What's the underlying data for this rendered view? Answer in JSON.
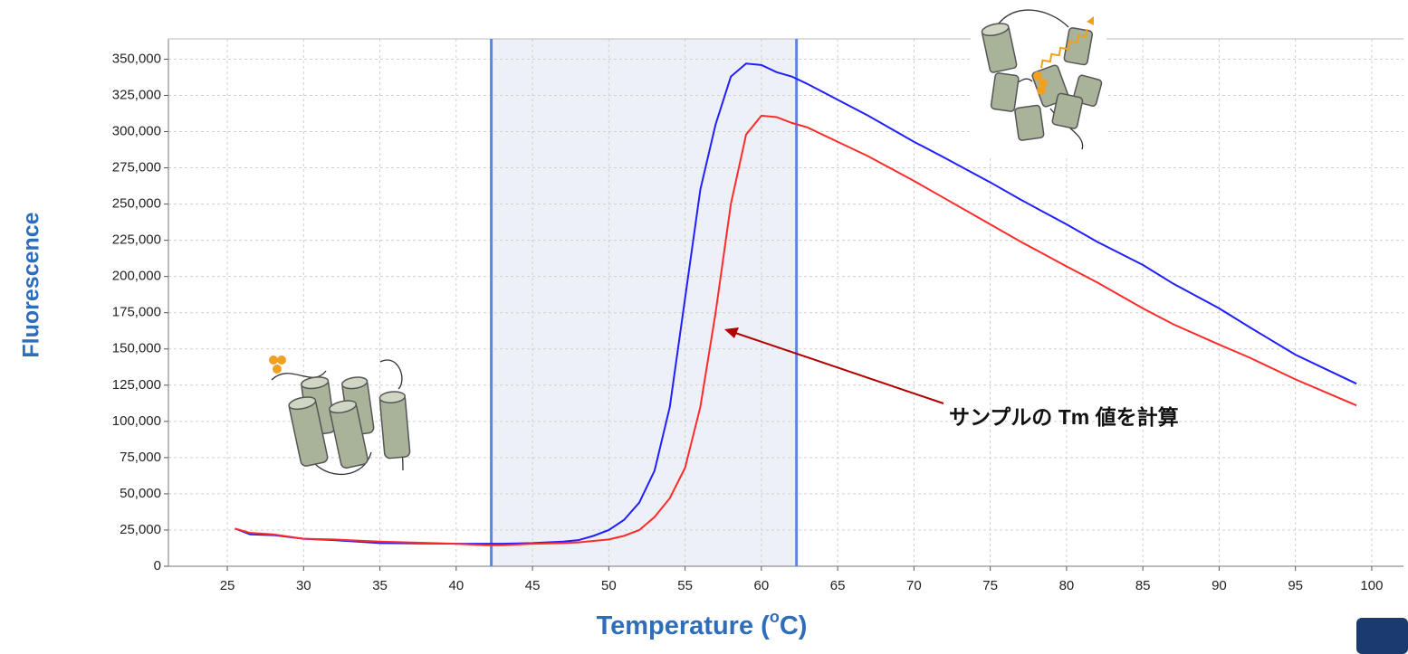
{
  "chart_data": {
    "type": "line",
    "y_label": "Fluorescence",
    "x_label": [
      "Temperature (",
      "o",
      "C)"
    ],
    "annotation": "サンプルの Tm 値を計算",
    "x": [
      25.5,
      26.5,
      28,
      30,
      32,
      35,
      40,
      42,
      43,
      45,
      47,
      48,
      49,
      50,
      51,
      52,
      53,
      54,
      55,
      56,
      57,
      58,
      59,
      60,
      61,
      62,
      63,
      65,
      67,
      70,
      72,
      75,
      77,
      80,
      82,
      85,
      87,
      90,
      92,
      95,
      97,
      99
    ],
    "series": [
      {
        "color": "#1f1fff",
        "values": [
          26000,
          22000,
          21500,
          19000,
          18000,
          16000,
          15500,
          15500,
          15500,
          16000,
          17000,
          18000,
          21000,
          25000,
          32000,
          44000,
          66000,
          110000,
          185000,
          260000,
          305000,
          338000,
          347000,
          346000,
          341000,
          338000,
          333000,
          322000,
          311000,
          293000,
          282000,
          265000,
          253000,
          236000,
          224000,
          208000,
          195000,
          178000,
          165000,
          146000,
          136000,
          126000
        ]
      },
      {
        "color": "#ff2a2a",
        "values": [
          26000,
          23000,
          22000,
          19000,
          18500,
          17000,
          15500,
          14500,
          14500,
          15500,
          16000,
          16500,
          17500,
          18500,
          21000,
          25000,
          34000,
          47000,
          68000,
          110000,
          175000,
          250000,
          298000,
          311000,
          310000,
          306000,
          303000,
          293000,
          283000,
          266000,
          254000,
          236000,
          224000,
          207000,
          196000,
          178000,
          167000,
          153000,
          144000,
          129000,
          120000,
          111000
        ]
      }
    ],
    "shaded_region": [
      42.3,
      62.3
    ],
    "shaded_color": "#eef0f8",
    "region_line_color": "#5b86e8",
    "xlim": [
      21.14,
      102.08
    ],
    "ylim": [
      0,
      364000
    ],
    "xticks": [
      25,
      30,
      35,
      40,
      45,
      50,
      55,
      60,
      65,
      70,
      75,
      80,
      85,
      90,
      95,
      100
    ],
    "yticks": [
      0,
      {
        "value": 25000,
        "label": "25,000"
      },
      {
        "value": 50000,
        "label": "50,000"
      },
      {
        "value": 75000,
        "label": "75,000"
      },
      {
        "value": 100000,
        "label": "100,000"
      },
      {
        "value": 125000,
        "label": "125,000"
      },
      {
        "value": 150000,
        "label": "150,000"
      },
      {
        "value": 175000,
        "label": "175,000"
      },
      {
        "value": 200000,
        "label": "200,000"
      },
      {
        "value": 225000,
        "label": "225,000"
      },
      {
        "value": 250000,
        "label": "250,000"
      },
      {
        "value": 275000,
        "label": "275,000"
      },
      {
        "value": 300000,
        "label": "300,000"
      },
      {
        "value": 325000,
        "label": "325,000"
      },
      {
        "value": 350000,
        "label": "350,000"
      }
    ],
    "grid": true
  }
}
